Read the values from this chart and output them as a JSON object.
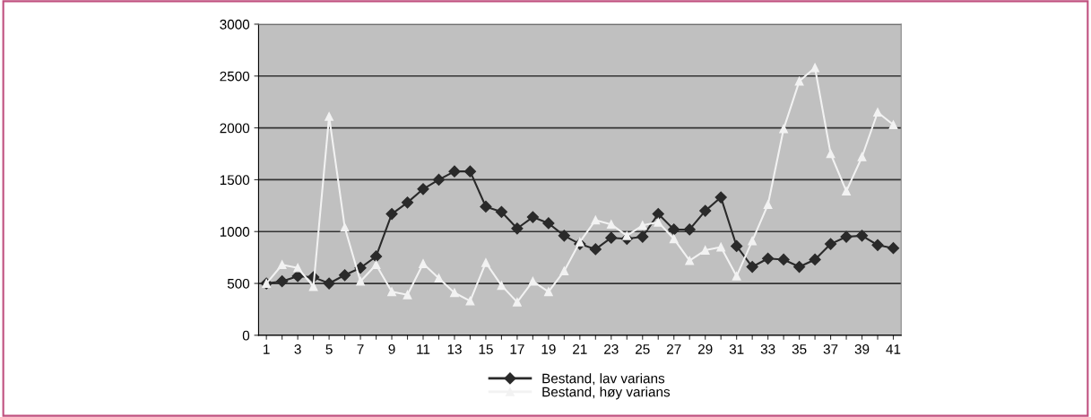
{
  "chart_data": {
    "type": "line",
    "categories": [
      "1",
      null,
      "3",
      null,
      "5",
      null,
      "7",
      null,
      "9",
      null,
      "11",
      null,
      "13",
      null,
      "15",
      null,
      "17",
      null,
      "19",
      null,
      "21",
      null,
      "23",
      null,
      "25",
      null,
      "27",
      null,
      "29",
      null,
      "31",
      null,
      "33",
      null,
      "35",
      null,
      "37",
      null,
      "39",
      null,
      "41"
    ],
    "series": [
      {
        "name": "Bestand, lav varians",
        "color": "#2a2a2a",
        "marker": "diamond",
        "values": [
          500,
          520,
          570,
          560,
          500,
          580,
          650,
          760,
          1170,
          1280,
          1410,
          1500,
          1580,
          1580,
          1240,
          1190,
          1030,
          1140,
          1080,
          960,
          880,
          830,
          940,
          930,
          950,
          1170,
          1020,
          1020,
          1200,
          1330,
          860,
          660,
          740,
          730,
          660,
          730,
          880,
          950,
          960,
          870,
          840
        ]
      },
      {
        "name": "Bestand, høy varians",
        "color": "#f2f2f2",
        "marker": "triangle",
        "values": [
          500,
          680,
          650,
          470,
          2110,
          1040,
          520,
          680,
          420,
          390,
          690,
          550,
          410,
          330,
          700,
          480,
          320,
          520,
          420,
          620,
          900,
          1110,
          1070,
          960,
          1060,
          1090,
          930,
          720,
          820,
          850,
          570,
          910,
          1260,
          1990,
          2450,
          2580,
          1750,
          1390,
          1720,
          2150,
          2030
        ]
      }
    ],
    "ylim": [
      0,
      3000
    ],
    "yticks": [
      0,
      500,
      1000,
      1500,
      2000,
      2500,
      3000
    ],
    "grid": "y",
    "legend": "bottom",
    "line_style": "solid"
  }
}
